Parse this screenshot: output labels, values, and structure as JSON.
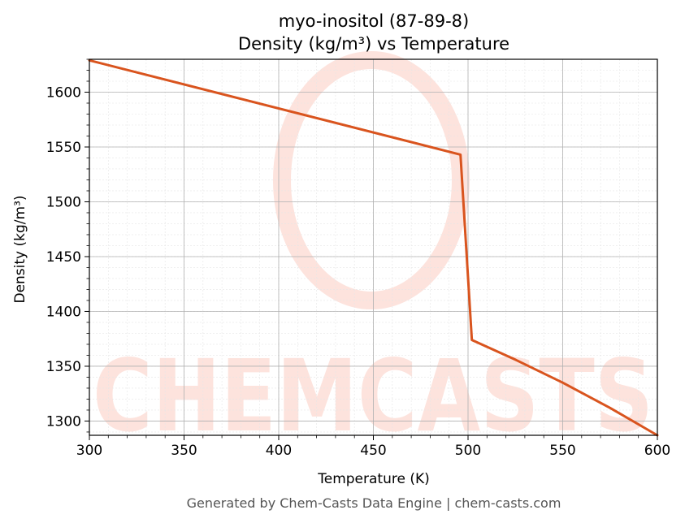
{
  "chart_data": {
    "type": "line",
    "title_line1": "myo-inositol (87-89-8)",
    "title_line2": "Density (kg/m³) vs Temperature",
    "xlabel": "Temperature (K)",
    "ylabel": "Density (kg/m³)",
    "xlim": [
      300,
      600
    ],
    "ylim": [
      1287,
      1630
    ],
    "x_ticks": [
      300,
      350,
      400,
      450,
      500,
      550,
      600
    ],
    "y_ticks": [
      1300,
      1350,
      1400,
      1450,
      1500,
      1550,
      1600
    ],
    "grid": true,
    "series": [
      {
        "color": "#d9541e",
        "x": [
          300,
          496,
          502,
          525,
          550,
          575,
          600
        ],
        "y": [
          1629,
          1543,
          1374,
          1356,
          1335,
          1312,
          1287
        ]
      }
    ]
  },
  "watermark": {
    "text": "CHEMCASTS",
    "color": "#fde3dd"
  },
  "footer": {
    "text": "Generated by Chem-Casts Data Engine | chem-casts.com"
  }
}
